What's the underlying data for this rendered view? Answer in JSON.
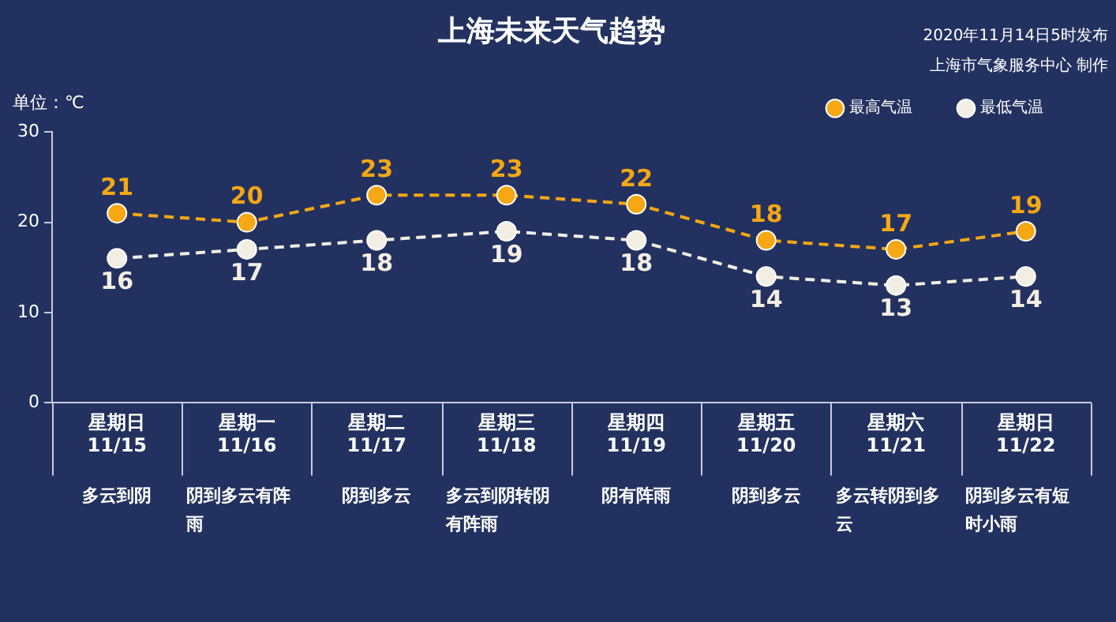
{
  "chart_data": {
    "type": "line",
    "title": "上海未来天气趋势",
    "ylabel": "单位：℃",
    "categories": [
      "星期日 11/15",
      "星期一 11/16",
      "星期二 11/17",
      "星期三 11/18",
      "星期四 11/19",
      "星期五 11/20",
      "星期六 11/21",
      "星期日 11/22"
    ],
    "series": [
      {
        "name": "最高气温",
        "color": "#f5a714",
        "values": [
          21,
          20,
          23,
          23,
          22,
          18,
          17,
          19
        ]
      },
      {
        "name": "最低气温",
        "color": "#f3eee4",
        "values": [
          16,
          17,
          18,
          19,
          18,
          14,
          13,
          14
        ]
      }
    ],
    "ylim": [
      0,
      30
    ],
    "yticks": [
      0,
      10,
      20,
      30
    ],
    "grid": false,
    "legend": "top",
    "marker": "circle",
    "line_style": "dashed",
    "data_labels": true,
    "annotations": [
      "2020年11月14日5时发布",
      "上海市气象服务中心 制作",
      "多云到阴",
      "阴到多云有阵雨",
      "阴到多云",
      "多云到阴转阴有阵雨",
      "阴有阵雨",
      "阴到多云",
      "多云转阴到多云",
      "阴到多云有短时小雨"
    ]
  }
}
